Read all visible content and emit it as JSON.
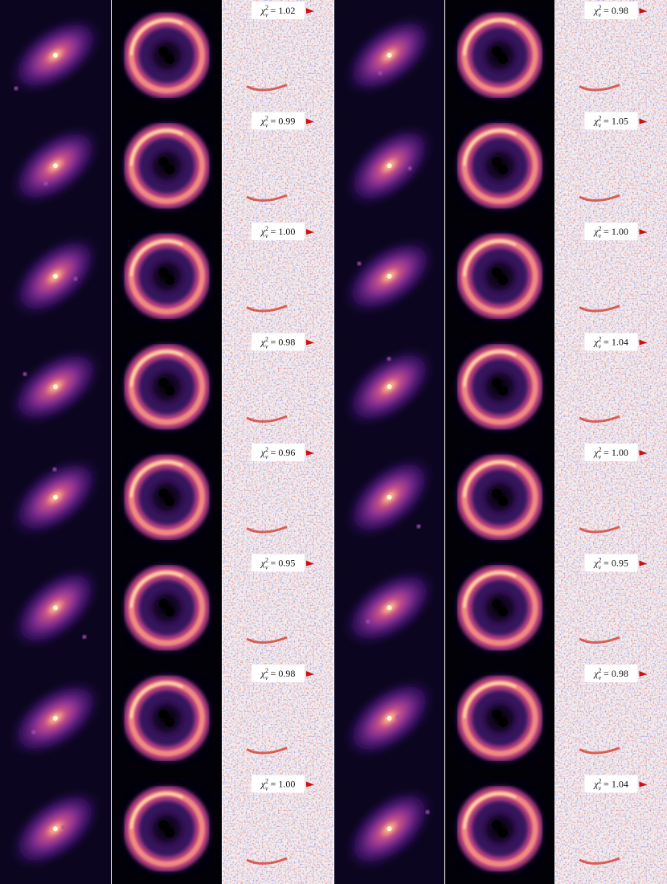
{
  "figure": {
    "label_symbol": "χ",
    "label_superscript": "2",
    "label_subscript": "ν",
    "label_relation": "=",
    "blocks": [
      {
        "chi2": [
          "1.02",
          "0.99",
          "1.00",
          "0.98",
          "0.96",
          "0.95",
          "0.98",
          "1.00"
        ]
      },
      {
        "chi2": [
          "0.98",
          "1.05",
          "1.00",
          "1.04",
          "1.00",
          "0.95",
          "0.98",
          "1.04"
        ]
      }
    ]
  }
}
